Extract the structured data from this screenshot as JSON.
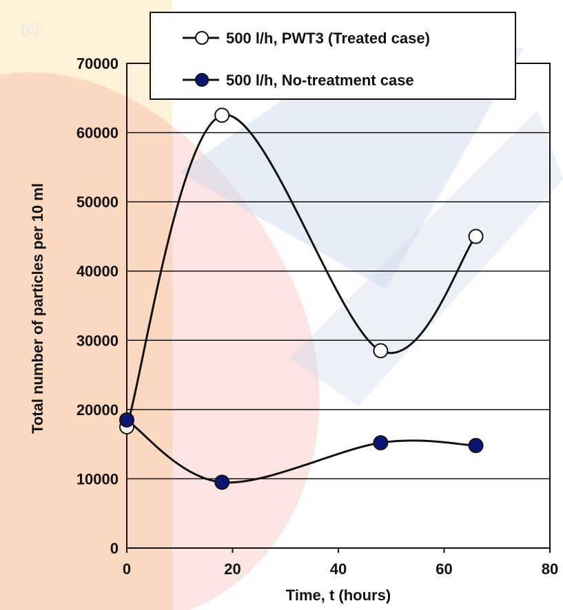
{
  "panel_label": "(c)",
  "colors": {
    "watermark_red": "#e8403a",
    "watermark_yellow": "#fde9b8",
    "watermark_blue": "#c9d6ec",
    "marker_fill": "#0b1573",
    "line": "#000000"
  },
  "chart_data": {
    "type": "line",
    "xlabel": "Time, t (hours)",
    "ylabel": "Total number of particles per 10 ml",
    "xlim": [
      0,
      80
    ],
    "ylim": [
      0,
      70000
    ],
    "x_ticks": [
      "0",
      "20",
      "40",
      "60",
      "80"
    ],
    "y_ticks": [
      "0",
      "10000",
      "20000",
      "30000",
      "40000",
      "50000",
      "60000",
      "70000"
    ],
    "grid": "horizontal",
    "legend_position": "top-right",
    "series": [
      {
        "name": "500 l/h, PWT3 (Treated case)",
        "marker": "open-circle",
        "x": [
          0,
          18,
          48,
          66
        ],
        "y": [
          17500,
          62500,
          28500,
          45000
        ]
      },
      {
        "name": "500 l/h, No-treatment case",
        "marker": "filled-circle",
        "x": [
          0,
          18,
          48,
          66
        ],
        "y": [
          18500,
          9500,
          15200,
          14800
        ]
      }
    ]
  }
}
